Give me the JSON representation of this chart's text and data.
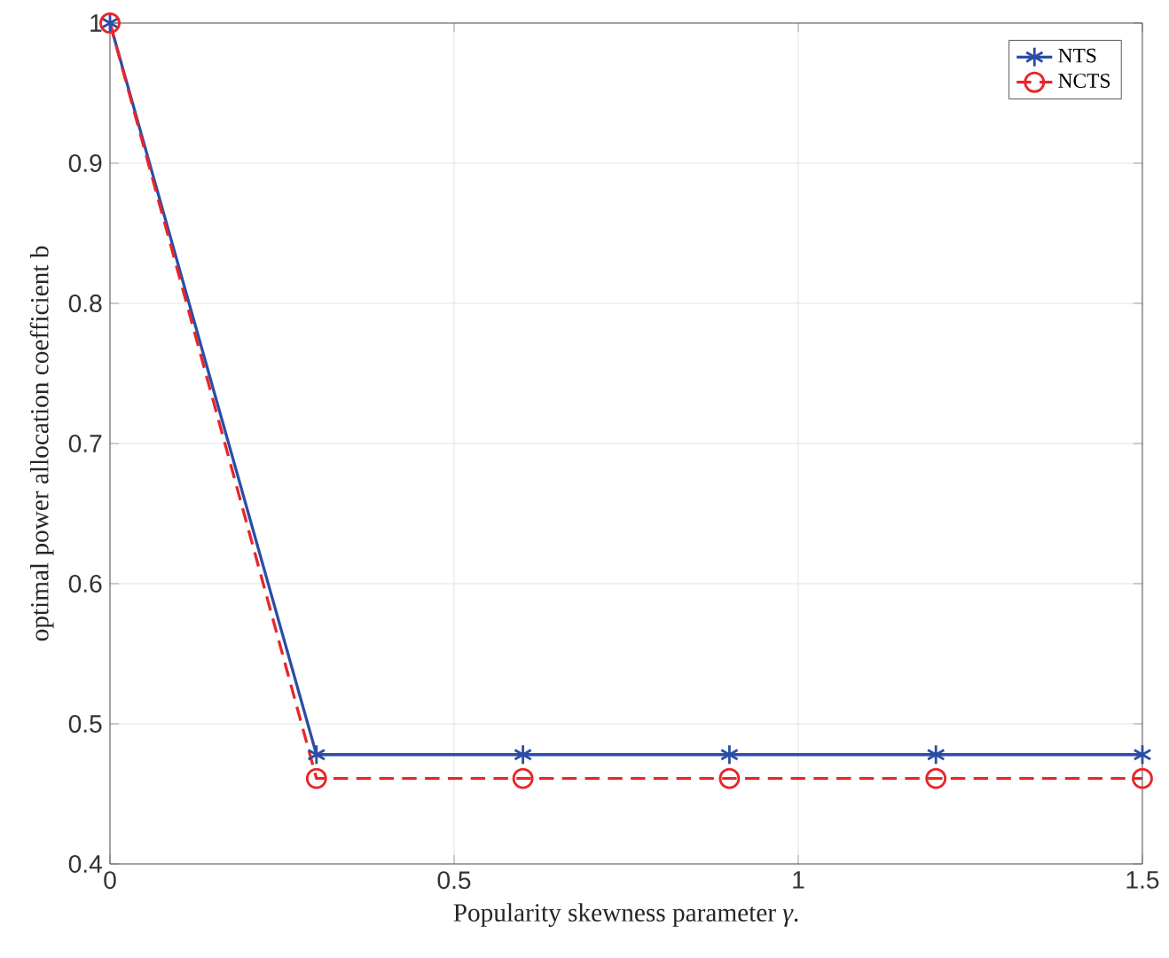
{
  "chart_data": {
    "type": "line",
    "xlabel": "Popularity skewness parameter *γ*.",
    "ylabel": "optimal power allocation coefficient b",
    "x": [
      0,
      0.3,
      0.6,
      0.9,
      1.2,
      1.5
    ],
    "series": [
      {
        "name": "NTS",
        "color": "#2a4ea6",
        "values": [
          1,
          0.478,
          0.478,
          0.478,
          0.478,
          0.478
        ],
        "marker": "cross",
        "line_style": "solid"
      },
      {
        "name": "NCTS",
        "color": "#e8262a",
        "values": [
          1,
          0.461,
          0.461,
          0.461,
          0.461,
          0.461
        ],
        "marker": "circle",
        "line_style": "dashed"
      }
    ],
    "xlim": [
      0,
      1.5
    ],
    "xticks": [
      0,
      0.5,
      1,
      1.5
    ],
    "ylim": [
      0.4,
      1
    ],
    "yticks": [
      0.4,
      0.5,
      0.6,
      0.7,
      0.8,
      0.9,
      1
    ],
    "grid": true,
    "legend": "top right"
  }
}
